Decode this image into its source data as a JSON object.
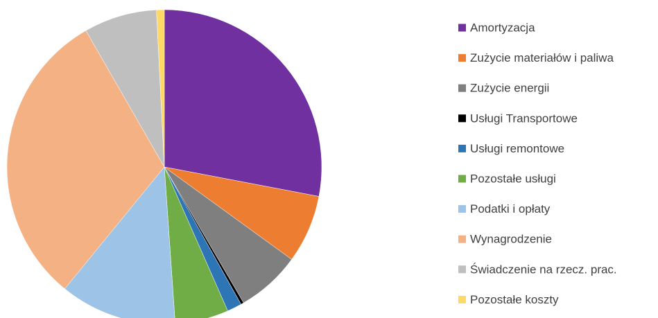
{
  "chart_data": {
    "type": "pie",
    "categories": [
      "Amortyzacja",
      "Zużycie materiałów i paliwa",
      "Zużycie energii",
      "Usługi Transportowe",
      "Usługi remontowe",
      "Pozostałe usługi",
      "Podatki i opłaty",
      "Wynagrodzenie",
      "Świadczenie na rzecz. prac.",
      "Pozostałe koszty"
    ],
    "values": [
      28,
      7,
      6.6,
      0.3,
      1.5,
      5.5,
      12,
      30.8,
      7.5,
      0.8
    ],
    "colors": [
      "#7030a0",
      "#ed7d31",
      "#7f7f7f",
      "#000000",
      "#2e75b6",
      "#70ad47",
      "#9dc3e6",
      "#f4b183",
      "#bfbfbf",
      "#ffd966"
    ],
    "legend": "right"
  }
}
